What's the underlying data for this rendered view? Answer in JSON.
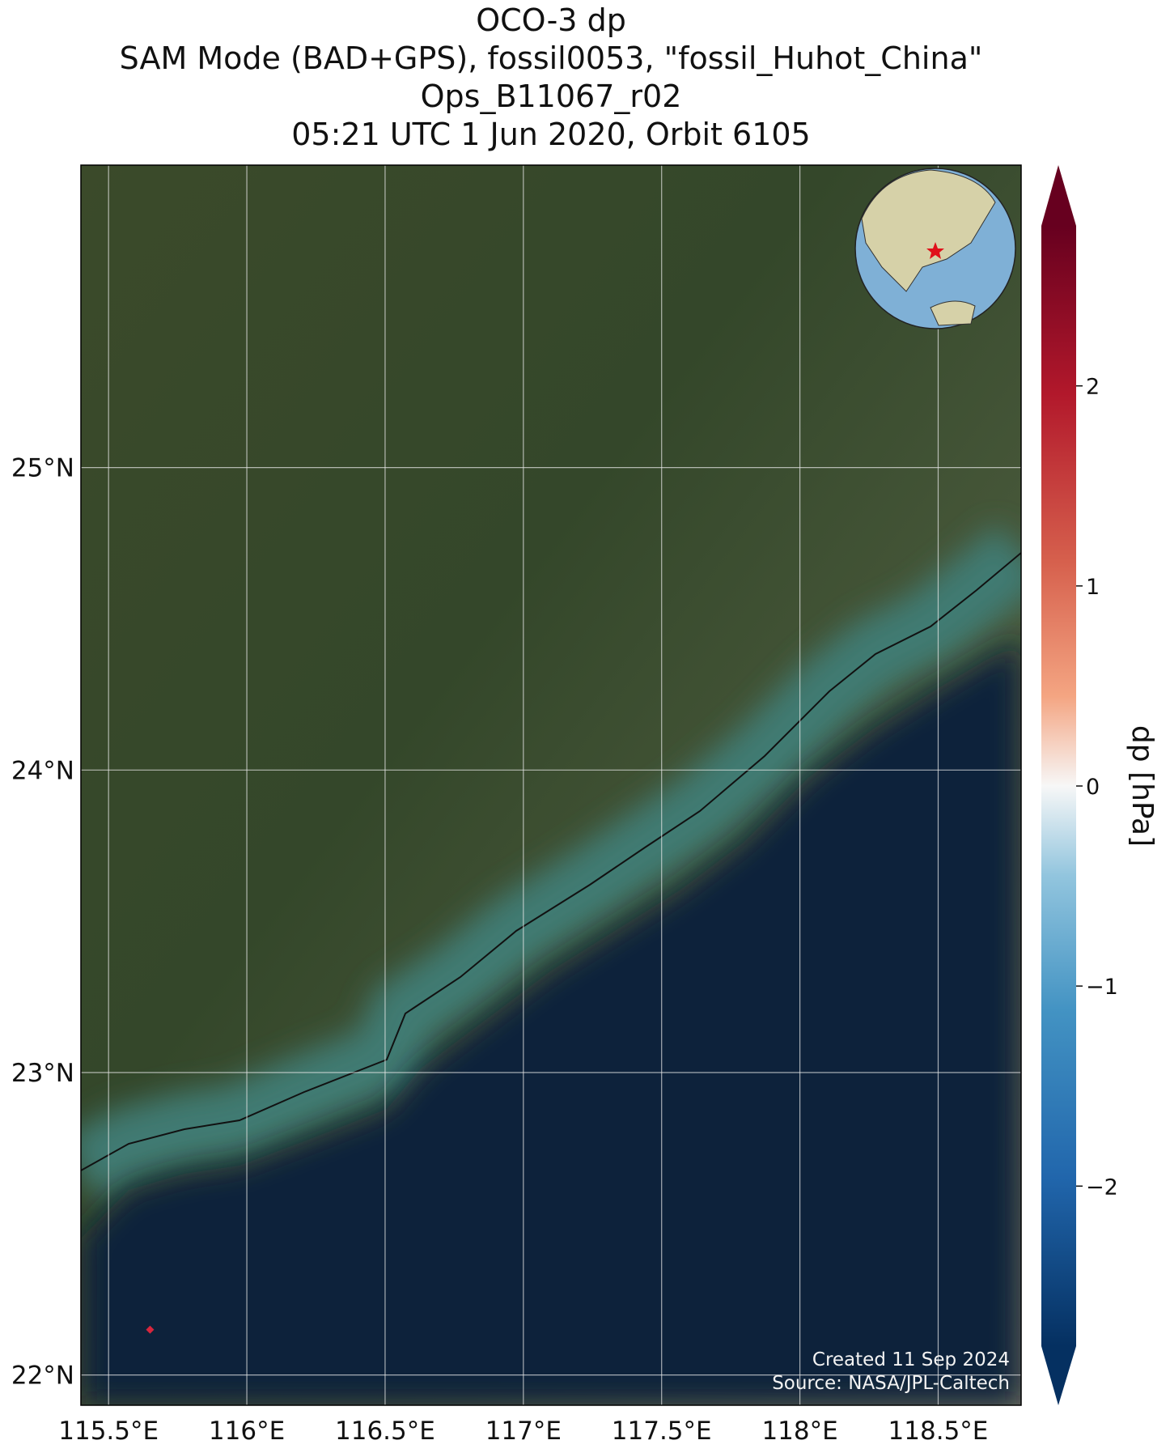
{
  "chart_data": {
    "type": "map",
    "title_lines": [
      "OCO-3 dp",
      "SAM Mode (BAD+GPS), fossil0053, \"fossil_Huhot_China\"",
      "Ops_B11067_r02",
      "05:21 UTC 1 Jun 2020, Orbit 6105"
    ],
    "xlim": [
      115.4,
      118.8
    ],
    "ylim": [
      21.9,
      26.0
    ],
    "xticks": [
      {
        "value": 115.5,
        "label": "115.5°E"
      },
      {
        "value": 116,
        "label": "116°E"
      },
      {
        "value": 116.5,
        "label": "116.5°E"
      },
      {
        "value": 117,
        "label": "117°E"
      },
      {
        "value": 117.5,
        "label": "117.5°E"
      },
      {
        "value": 118,
        "label": "118°E"
      },
      {
        "value": 118.5,
        "label": "118.5°E"
      }
    ],
    "yticks": [
      {
        "value": 22,
        "label": "22°N"
      },
      {
        "value": 23,
        "label": "23°N"
      },
      {
        "value": 24,
        "label": "24°N"
      },
      {
        "value": 25,
        "label": "25°N"
      }
    ],
    "grid": true,
    "points": [
      {
        "lon": 115.65,
        "lat": 22.15,
        "value": 2.0,
        "color": "#d7263d"
      }
    ],
    "colorbar": {
      "label": "dp [hPa]",
      "clim": [
        -2.8,
        2.8
      ],
      "ticks": [
        {
          "value": -2,
          "label": "−2"
        },
        {
          "value": -1,
          "label": "−1"
        },
        0,
        1,
        2
      ]
    },
    "credits": [
      "Created 11 Sep 2024",
      "Source: NASA/JPL-Caltech"
    ]
  }
}
